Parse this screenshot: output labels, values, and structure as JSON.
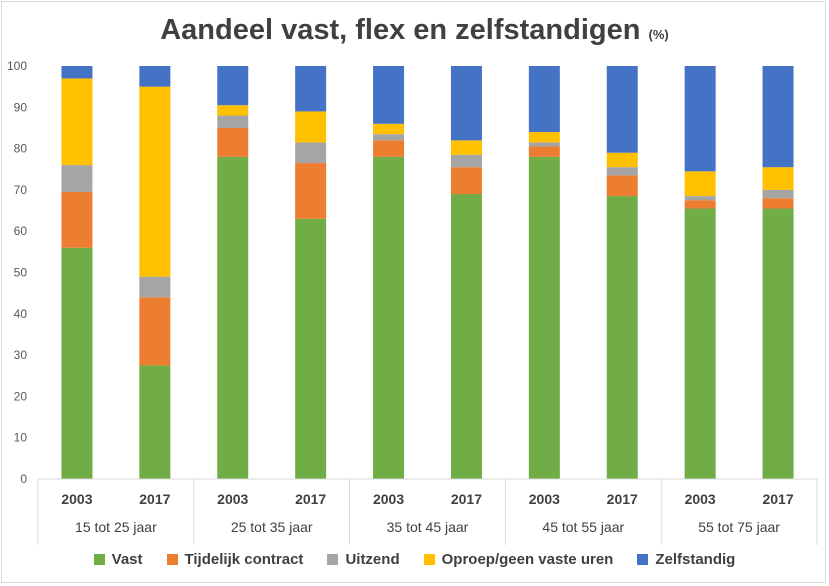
{
  "chart_data": {
    "type": "bar",
    "stacked": true,
    "title": "Aandeel vast, flex en zelfstandigen",
    "title_unit": "(%)",
    "ylim": [
      0,
      100
    ],
    "y_ticks": [
      0,
      10,
      20,
      30,
      40,
      50,
      60,
      70,
      80,
      90,
      100
    ],
    "groups": [
      "15 tot 25 jaar",
      "25 tot 35 jaar",
      "35 tot 45 jaar",
      "45 tot 55 jaar",
      "55 tot 75 jaar"
    ],
    "years": [
      "2003",
      "2017"
    ],
    "categories": [
      "15 tot 25 jaar 2003",
      "15 tot 25 jaar 2017",
      "25 tot 35 jaar 2003",
      "25 tot 35 jaar 2017",
      "35 tot 45 jaar 2003",
      "35 tot 45 jaar 2017",
      "45 tot 55 jaar 2003",
      "45 tot 55 jaar 2017",
      "55 tot 75 jaar 2003",
      "55 tot 75 jaar 2017"
    ],
    "series": [
      {
        "name": "Vast",
        "color": "#70ad47",
        "values": [
          56,
          27.5,
          78,
          63,
          78,
          69,
          78,
          68.5,
          65.5,
          65.5
        ]
      },
      {
        "name": "Tijdelijk contract",
        "color": "#ed7d31",
        "values": [
          13.5,
          16.5,
          7,
          13.5,
          4,
          6.5,
          2.5,
          5,
          2,
          2.5
        ]
      },
      {
        "name": "Uitzend",
        "color": "#a5a5a5",
        "values": [
          6.5,
          5,
          3,
          5,
          1.5,
          3,
          1,
          2,
          1,
          2
        ]
      },
      {
        "name": "Oproep/geen vaste uren",
        "color": "#ffc000",
        "values": [
          21,
          46,
          2.5,
          7.5,
          2.5,
          3.5,
          2.5,
          3.5,
          6,
          5.5
        ]
      },
      {
        "name": "Zelfstandig",
        "color": "#4472c4",
        "values": [
          3,
          5,
          9.5,
          11,
          14,
          18,
          16,
          21,
          25.5,
          24.5
        ]
      }
    ],
    "legend_position": "bottom",
    "grid": false
  }
}
